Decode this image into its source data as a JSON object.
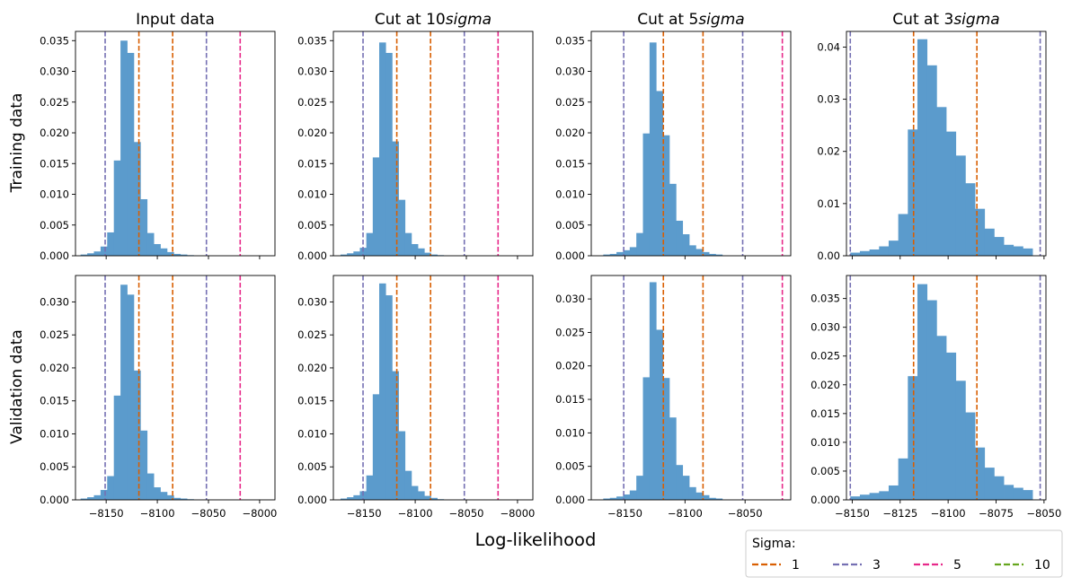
{
  "figure": {
    "xlabel": "Log-likelihood",
    "row_labels": [
      "Training data",
      "Validation data"
    ],
    "legend": {
      "title": "Sigma:",
      "placement": "bottom-right",
      "entries": [
        {
          "label": "1",
          "color": "#d95f02"
        },
        {
          "label": "3",
          "color": "#7570b3"
        },
        {
          "label": "5",
          "color": "#e7298a"
        },
        {
          "label": "10",
          "color": "#66a61e"
        }
      ]
    },
    "bar_color": "#5b9bcc"
  },
  "chart_data": [
    {
      "type": "bar",
      "title_prefix": "Input data",
      "title_italic": "",
      "row": "Training data",
      "xlim": [
        -8180,
        -7985
      ],
      "ylim": [
        0,
        0.0365
      ],
      "xticks": [
        -8150,
        -8100,
        -8050,
        -8000
      ],
      "xtick_labels_shown": false,
      "yticks": [
        0,
        0.005,
        0.01,
        0.015,
        0.02,
        0.025,
        0.03,
        0.035
      ],
      "ytick_labels": [
        "0.000",
        "0.005",
        "0.010",
        "0.015",
        "0.020",
        "0.025",
        "0.030",
        "0.035"
      ],
      "bin_start": -8175,
      "bin_width": 6.5,
      "heights": [
        0.0002,
        0.0004,
        0.0007,
        0.0015,
        0.0038,
        0.0155,
        0.035,
        0.033,
        0.0185,
        0.0092,
        0.0037,
        0.0019,
        0.0012,
        0.0006,
        0.0003,
        0.0002,
        0.0001
      ],
      "vlines": [
        {
          "x": -8118,
          "sigma": "1"
        },
        {
          "x": -8085,
          "sigma": "1"
        },
        {
          "x": -8151,
          "sigma": "3"
        },
        {
          "x": -8052,
          "sigma": "3"
        },
        {
          "x": -8019,
          "sigma": "5"
        }
      ]
    },
    {
      "type": "bar",
      "title_prefix": "Cut at 10",
      "title_italic": "sigma",
      "row": "Training data",
      "xlim": [
        -8180,
        -7985
      ],
      "ylim": [
        0,
        0.0365
      ],
      "xticks": [
        -8150,
        -8100,
        -8050,
        -8000
      ],
      "xtick_labels_shown": false,
      "yticks": [
        0,
        0.005,
        0.01,
        0.015,
        0.02,
        0.025,
        0.03,
        0.035
      ],
      "ytick_labels": [
        "0.000",
        "0.005",
        "0.010",
        "0.015",
        "0.020",
        "0.025",
        "0.030",
        "0.035"
      ],
      "bin_start": -8173,
      "bin_width": 6.3,
      "heights": [
        0.0002,
        0.0004,
        0.0007,
        0.0013,
        0.0037,
        0.016,
        0.0347,
        0.033,
        0.0186,
        0.0091,
        0.0037,
        0.0019,
        0.0012,
        0.0005,
        0.0002,
        0.0001
      ],
      "vlines": [
        {
          "x": -8118,
          "sigma": "1"
        },
        {
          "x": -8085,
          "sigma": "1"
        },
        {
          "x": -8151,
          "sigma": "3"
        },
        {
          "x": -8052,
          "sigma": "3"
        },
        {
          "x": -8019,
          "sigma": "5"
        }
      ]
    },
    {
      "type": "bar",
      "title_prefix": "Cut at 5",
      "title_italic": "sigma",
      "row": "Training data",
      "xlim": [
        -8178,
        -8012
      ],
      "ylim": [
        0,
        0.0365
      ],
      "xticks": [
        -8150,
        -8100,
        -8050
      ],
      "xtick_labels_shown": false,
      "yticks": [
        0,
        0.005,
        0.01,
        0.015,
        0.02,
        0.025,
        0.03,
        0.035
      ],
      "ytick_labels": [
        "0.000",
        "0.005",
        "0.010",
        "0.015",
        "0.020",
        "0.025",
        "0.030",
        "0.035"
      ],
      "bin_start": -8168,
      "bin_width": 5.5,
      "heights": [
        0.0002,
        0.0003,
        0.0006,
        0.0009,
        0.0014,
        0.0037,
        0.0199,
        0.0347,
        0.0268,
        0.0196,
        0.0117,
        0.0057,
        0.0035,
        0.0017,
        0.0011,
        0.0006,
        0.0003,
        0.0002
      ],
      "vlines": [
        {
          "x": -8118,
          "sigma": "1"
        },
        {
          "x": -8085,
          "sigma": "1"
        },
        {
          "x": -8151,
          "sigma": "3"
        },
        {
          "x": -8052,
          "sigma": "3"
        },
        {
          "x": -8019,
          "sigma": "5"
        }
      ]
    },
    {
      "type": "bar",
      "title_prefix": "Cut at 3",
      "title_italic": "sigma",
      "row": "Training data",
      "xlim": [
        -8153,
        -8049
      ],
      "ylim": [
        0,
        0.043
      ],
      "xticks": [
        -8150,
        -8125,
        -8100,
        -8075,
        -8050
      ],
      "xtick_labels_shown": false,
      "yticks": [
        0,
        0.01,
        0.02,
        0.03,
        0.04
      ],
      "ytick_labels": [
        "0.00",
        "0.01",
        "0.02",
        "0.03",
        "0.04"
      ],
      "bin_start": -8151,
      "bin_width": 5,
      "heights": [
        0.0006,
        0.0009,
        0.0012,
        0.0018,
        0.0029,
        0.008,
        0.0242,
        0.0415,
        0.0365,
        0.0285,
        0.0238,
        0.0192,
        0.0139,
        0.009,
        0.0052,
        0.0036,
        0.0021,
        0.0018,
        0.0014
      ],
      "vlines": [
        {
          "x": -8118,
          "sigma": "1"
        },
        {
          "x": -8085,
          "sigma": "1"
        },
        {
          "x": -8151,
          "sigma": "3"
        },
        {
          "x": -8052,
          "sigma": "3"
        }
      ]
    },
    {
      "type": "bar",
      "title_prefix": "",
      "title_italic": "",
      "row": "Validation data",
      "xlim": [
        -8180,
        -7985
      ],
      "ylim": [
        0,
        0.034
      ],
      "xticks": [
        -8150,
        -8100,
        -8050,
        -8000
      ],
      "xtick_labels_shown": true,
      "xtick_labels": [
        "−8150",
        "−8100",
        "−8050",
        "−8000"
      ],
      "yticks": [
        0,
        0.005,
        0.01,
        0.015,
        0.02,
        0.025,
        0.03
      ],
      "ytick_labels": [
        "0.000",
        "0.005",
        "0.010",
        "0.015",
        "0.020",
        "0.025",
        "0.030"
      ],
      "bin_start": -8175,
      "bin_width": 6.5,
      "heights": [
        0.0002,
        0.0004,
        0.0007,
        0.0015,
        0.0036,
        0.0158,
        0.0326,
        0.0311,
        0.0196,
        0.0105,
        0.004,
        0.0019,
        0.0012,
        0.0007,
        0.0003,
        0.0002,
        0.0001
      ],
      "vlines": [
        {
          "x": -8118,
          "sigma": "1"
        },
        {
          "x": -8085,
          "sigma": "1"
        },
        {
          "x": -8151,
          "sigma": "3"
        },
        {
          "x": -8052,
          "sigma": "3"
        },
        {
          "x": -8019,
          "sigma": "5"
        }
      ]
    },
    {
      "type": "bar",
      "title_prefix": "",
      "title_italic": "",
      "row": "Validation data",
      "xlim": [
        -8180,
        -7985
      ],
      "ylim": [
        0,
        0.034
      ],
      "xticks": [
        -8150,
        -8100,
        -8050,
        -8000
      ],
      "xtick_labels_shown": true,
      "xtick_labels": [
        "−8150",
        "−8100",
        "−8050",
        "−8000"
      ],
      "yticks": [
        0,
        0.005,
        0.01,
        0.015,
        0.02,
        0.025,
        0.03
      ],
      "ytick_labels": [
        "0.000",
        "0.005",
        "0.010",
        "0.015",
        "0.020",
        "0.025",
        "0.030"
      ],
      "bin_start": -8173,
      "bin_width": 6.3,
      "heights": [
        0.0002,
        0.0004,
        0.0007,
        0.0013,
        0.0037,
        0.016,
        0.0328,
        0.031,
        0.0195,
        0.0104,
        0.0044,
        0.0021,
        0.0013,
        0.0006,
        0.0003,
        0.0001
      ],
      "vlines": [
        {
          "x": -8118,
          "sigma": "1"
        },
        {
          "x": -8085,
          "sigma": "1"
        },
        {
          "x": -8151,
          "sigma": "3"
        },
        {
          "x": -8052,
          "sigma": "3"
        },
        {
          "x": -8019,
          "sigma": "5"
        }
      ]
    },
    {
      "type": "bar",
      "title_prefix": "",
      "title_italic": "",
      "row": "Validation data",
      "xlim": [
        -8178,
        -8012
      ],
      "ylim": [
        0,
        0.0335
      ],
      "xticks": [
        -8150,
        -8100,
        -8050
      ],
      "xtick_labels_shown": true,
      "xtick_labels": [
        "−8150",
        "−8100",
        "−8050"
      ],
      "yticks": [
        0,
        0.005,
        0.01,
        0.015,
        0.02,
        0.025,
        0.03
      ],
      "ytick_labels": [
        "0.000",
        "0.005",
        "0.010",
        "0.015",
        "0.020",
        "0.025",
        "0.030"
      ],
      "bin_start": -8168,
      "bin_width": 5.5,
      "heights": [
        0.0002,
        0.0003,
        0.0005,
        0.0008,
        0.0014,
        0.0036,
        0.0183,
        0.0325,
        0.0254,
        0.0182,
        0.0123,
        0.0052,
        0.0036,
        0.0019,
        0.0011,
        0.0007,
        0.0003,
        0.0002
      ],
      "vlines": [
        {
          "x": -8118,
          "sigma": "1"
        },
        {
          "x": -8085,
          "sigma": "1"
        },
        {
          "x": -8151,
          "sigma": "3"
        },
        {
          "x": -8052,
          "sigma": "3"
        },
        {
          "x": -8019,
          "sigma": "5"
        }
      ]
    },
    {
      "type": "bar",
      "title_prefix": "",
      "title_italic": "",
      "row": "Validation data",
      "xlim": [
        -8153,
        -8049
      ],
      "ylim": [
        0,
        0.039
      ],
      "xticks": [
        -8150,
        -8125,
        -8100,
        -8075,
        -8050
      ],
      "xtick_labels_shown": true,
      "xtick_labels": [
        "−8150",
        "−8125",
        "−8100",
        "−8075",
        "−8050"
      ],
      "yticks": [
        0,
        0.005,
        0.01,
        0.015,
        0.02,
        0.025,
        0.03,
        0.035
      ],
      "ytick_labels": [
        "0.000",
        "0.005",
        "0.010",
        "0.015",
        "0.020",
        "0.025",
        "0.030",
        "0.035"
      ],
      "bin_start": -8151,
      "bin_width": 5,
      "heights": [
        0.0006,
        0.0009,
        0.0012,
        0.0015,
        0.0025,
        0.0072,
        0.0215,
        0.0375,
        0.0347,
        0.0285,
        0.0256,
        0.0207,
        0.0152,
        0.0091,
        0.0056,
        0.0041,
        0.0026,
        0.0021,
        0.0017
      ],
      "vlines": [
        {
          "x": -8118,
          "sigma": "1"
        },
        {
          "x": -8085,
          "sigma": "1"
        },
        {
          "x": -8151,
          "sigma": "3"
        },
        {
          "x": -8052,
          "sigma": "3"
        }
      ]
    }
  ]
}
